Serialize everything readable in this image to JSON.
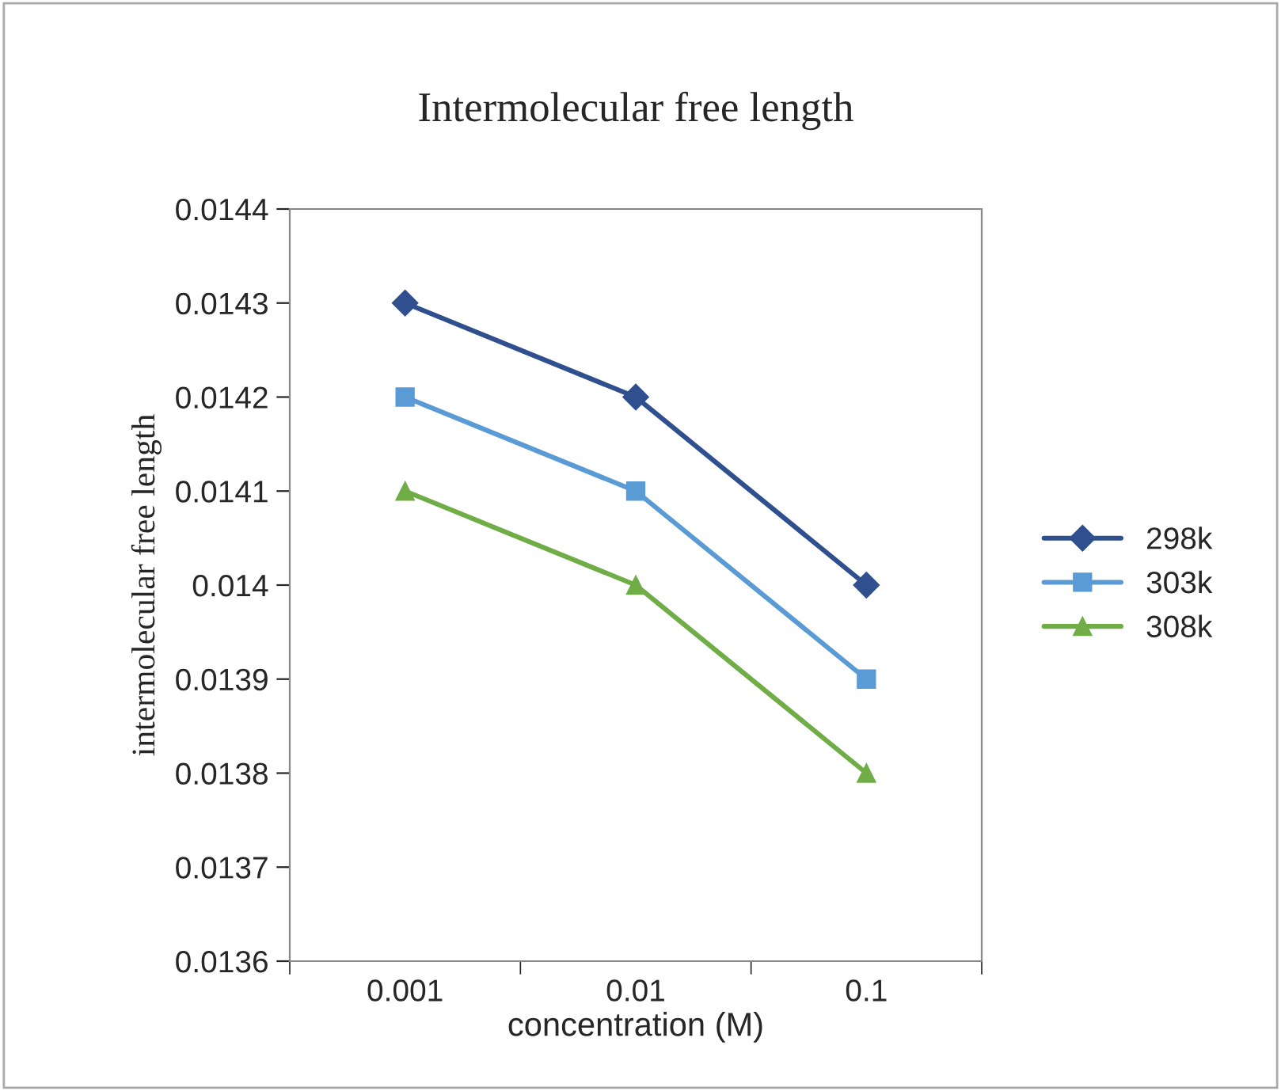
{
  "chart_data": {
    "type": "line",
    "title": "Intermolecular free length",
    "xlabel": "concentration (M)",
    "ylabel": "intermolecular free length",
    "categories": [
      "0.001",
      "0.01",
      "0.1"
    ],
    "series": [
      {
        "name": "298k",
        "color": "#2f4f8f",
        "marker": "diamond",
        "values": [
          0.0143,
          0.0142,
          0.014
        ]
      },
      {
        "name": "303k",
        "color": "#5b9bd5",
        "marker": "square",
        "values": [
          0.0142,
          0.0141,
          0.0139
        ]
      },
      {
        "name": "308k",
        "color": "#70ad47",
        "marker": "triangle",
        "values": [
          0.0141,
          0.014,
          0.0138
        ]
      }
    ],
    "ylim": [
      0.0136,
      0.0144
    ],
    "yticks": [
      0.0136,
      0.0137,
      0.0138,
      0.0139,
      0.014,
      0.0141,
      0.0142,
      0.0143,
      0.0144
    ],
    "grid": false,
    "legend": "right",
    "line_style": "solid"
  }
}
